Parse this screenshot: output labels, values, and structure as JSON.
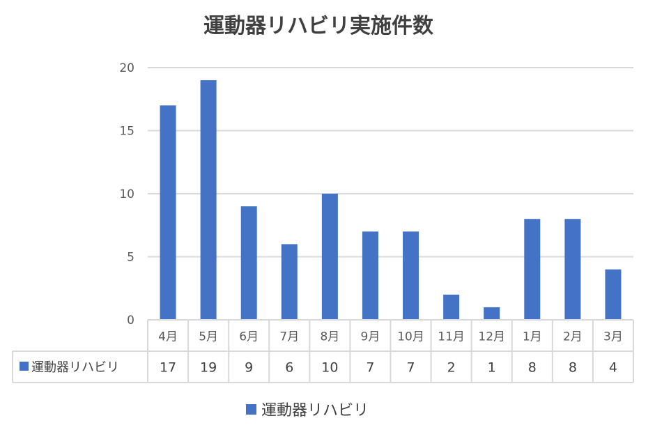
{
  "chart_data": {
    "type": "bar",
    "title": "運動器リハビリ実施件数",
    "categories": [
      "4月",
      "5月",
      "6月",
      "7月",
      "8月",
      "9月",
      "10月",
      "11月",
      "12月",
      "1月",
      "2月",
      "3月"
    ],
    "series": [
      {
        "name": "運動器リハビリ",
        "values": [
          17,
          19,
          9,
          6,
          10,
          7,
          7,
          2,
          1,
          8,
          8,
          4
        ],
        "color": "#4472C4"
      }
    ],
    "ylim": [
      0,
      20
    ],
    "yticks": [
      0,
      5,
      10,
      15,
      20
    ],
    "grid": true,
    "legend": "bottom",
    "data_table": true
  }
}
